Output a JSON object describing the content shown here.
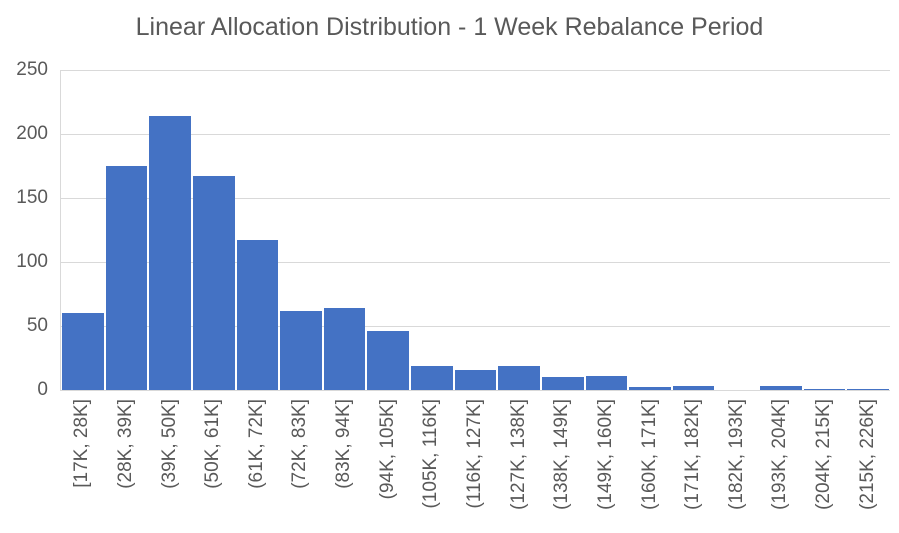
{
  "chart_data": {
    "type": "bar",
    "title": "Linear Allocation Distribution - 1 Week Rebalance Period",
    "categories": [
      "[17K, 28K]",
      "(28K, 39K]",
      "(39K, 50K]",
      "(50K, 61K]",
      "(61K, 72K]",
      "(72K, 83K]",
      "(83K, 94K]",
      "(94K, 105K]",
      "(105K, 116K]",
      "(116K, 127K]",
      "(127K, 138K]",
      "(138K, 149K]",
      "(149K, 160K]",
      "(160K, 171K]",
      "(171K, 182K]",
      "(182K, 193K]",
      "(193K, 204K]",
      "(204K, 215K]",
      "(215K, 226K]"
    ],
    "values": [
      60,
      175,
      214,
      167,
      117,
      62,
      64,
      46,
      19,
      16,
      19,
      10,
      11,
      2,
      3,
      0,
      3,
      1,
      1
    ],
    "xlabel": "",
    "ylabel": "",
    "ylim": [
      0,
      250
    ],
    "yticks": [
      0,
      50,
      100,
      150,
      200,
      250
    ],
    "grid": true,
    "legend_position": "none",
    "colors": {
      "bar": "#4472C4",
      "gridline": "#D9D9D9",
      "axis_line": "#D9D9D9",
      "text": "#595959",
      "background": "#FFFFFF"
    }
  }
}
